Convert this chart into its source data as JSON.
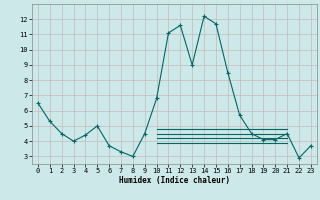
{
  "xlabel": "Humidex (Indice chaleur)",
  "bg_color": "#cce8e8",
  "grid_color": "#c8b8b8",
  "line_color": "#006666",
  "xlim": [
    -0.5,
    23.5
  ],
  "ylim": [
    2.5,
    13.0
  ],
  "yticks": [
    3,
    4,
    5,
    6,
    7,
    8,
    9,
    10,
    11,
    12
  ],
  "xticks": [
    0,
    1,
    2,
    3,
    4,
    5,
    6,
    7,
    8,
    9,
    10,
    11,
    12,
    13,
    14,
    15,
    16,
    17,
    18,
    19,
    20,
    21,
    22,
    23
  ],
  "main_series": {
    "x": [
      0,
      1,
      2,
      3,
      4,
      5,
      6,
      7,
      8,
      9,
      10,
      11,
      12,
      13,
      14,
      15,
      16,
      17,
      18,
      19,
      20,
      21,
      22,
      23
    ],
    "y": [
      6.5,
      5.3,
      4.5,
      4.0,
      4.4,
      5.0,
      3.7,
      3.3,
      3.0,
      4.5,
      6.8,
      11.1,
      11.6,
      9.0,
      12.2,
      11.7,
      8.5,
      5.7,
      4.5,
      4.1,
      4.1,
      4.5,
      2.9,
      3.7
    ]
  },
  "flat_series": [
    {
      "x": [
        10,
        21
      ],
      "y": [
        4.8,
        4.8
      ]
    },
    {
      "x": [
        10,
        21
      ],
      "y": [
        4.5,
        4.5
      ]
    },
    {
      "x": [
        10,
        21
      ],
      "y": [
        4.2,
        4.2
      ]
    },
    {
      "x": [
        10,
        21
      ],
      "y": [
        3.9,
        3.9
      ]
    }
  ]
}
